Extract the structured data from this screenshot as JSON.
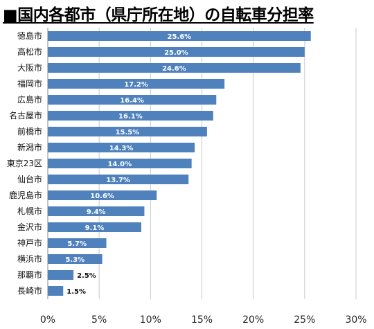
{
  "chart_data": {
    "type": "bar",
    "orientation": "horizontal",
    "title": "■国内各都市（県庁所在地）の自転車分担率",
    "categories": [
      "徳島市",
      "高松市",
      "大阪市",
      "福岡市",
      "広島市",
      "名古屋市",
      "前橋市",
      "新潟市",
      "東京23区",
      "仙台市",
      "鹿児島市",
      "札幌市",
      "金沢市",
      "神戸市",
      "横浜市",
      "那覇市",
      "長崎市"
    ],
    "values": [
      25.6,
      25.0,
      24.6,
      17.2,
      16.4,
      16.1,
      15.5,
      14.3,
      14.0,
      13.7,
      10.6,
      9.4,
      9.1,
      5.7,
      5.3,
      2.5,
      1.5
    ],
    "value_labels": [
      "25.6%",
      "25.0%",
      "24.6%",
      "17.2%",
      "16.4%",
      "16.1%",
      "15.5%",
      "14.3%",
      "14.0%",
      "13.7%",
      "10.6%",
      "9.4%",
      "9.1%",
      "5.7%",
      "5.3%",
      "2.5%",
      "1.5%"
    ],
    "xlim": [
      0,
      30
    ],
    "xticks": [
      0,
      5,
      10,
      15,
      20,
      25,
      30
    ],
    "xtick_labels": [
      "0%",
      "5%",
      "10%",
      "15%",
      "20%",
      "25%",
      "30%"
    ],
    "xlabel": "",
    "ylabel": "",
    "grid": "vertical",
    "legend": "none",
    "colors": {
      "bar": "#4f81bd",
      "grid": "#c8c8c8"
    }
  }
}
